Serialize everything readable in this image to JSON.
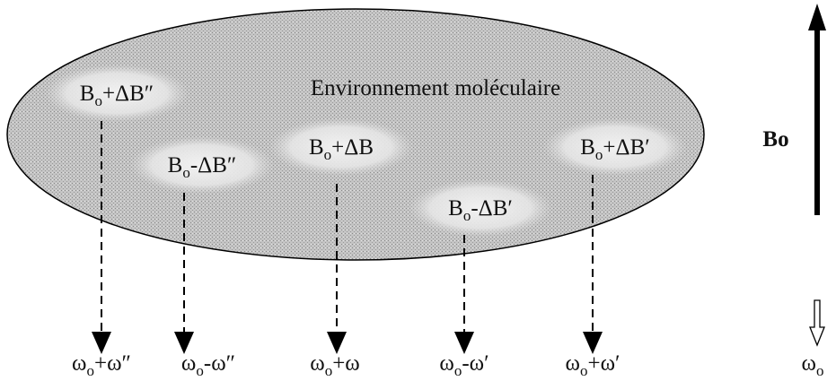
{
  "diagram": {
    "title": "Environnement moléculaire",
    "field_label": "Bo",
    "fields": [
      {
        "base": "B",
        "sub": "o",
        "rest": "+ΔB″"
      },
      {
        "base": "B",
        "sub": "o",
        "rest": "-ΔB″"
      },
      {
        "base": "B",
        "sub": "o",
        "rest": "+ΔB"
      },
      {
        "base": "B",
        "sub": "o",
        "rest": "-ΔB′"
      },
      {
        "base": "B",
        "sub": "o",
        "rest": "+ΔB′"
      }
    ],
    "frequencies": [
      {
        "base": "ω",
        "sub": "o",
        "rest": "+ω″"
      },
      {
        "base": "ω",
        "sub": "o",
        "rest": "-ω″"
      },
      {
        "base": "ω",
        "sub": "o",
        "rest": "+ω"
      },
      {
        "base": "ω",
        "sub": "o",
        "rest": "-ω′"
      },
      {
        "base": "ω",
        "sub": "o",
        "rest": "+ω′"
      }
    ],
    "reference": {
      "base": "ω",
      "sub": "o"
    }
  }
}
